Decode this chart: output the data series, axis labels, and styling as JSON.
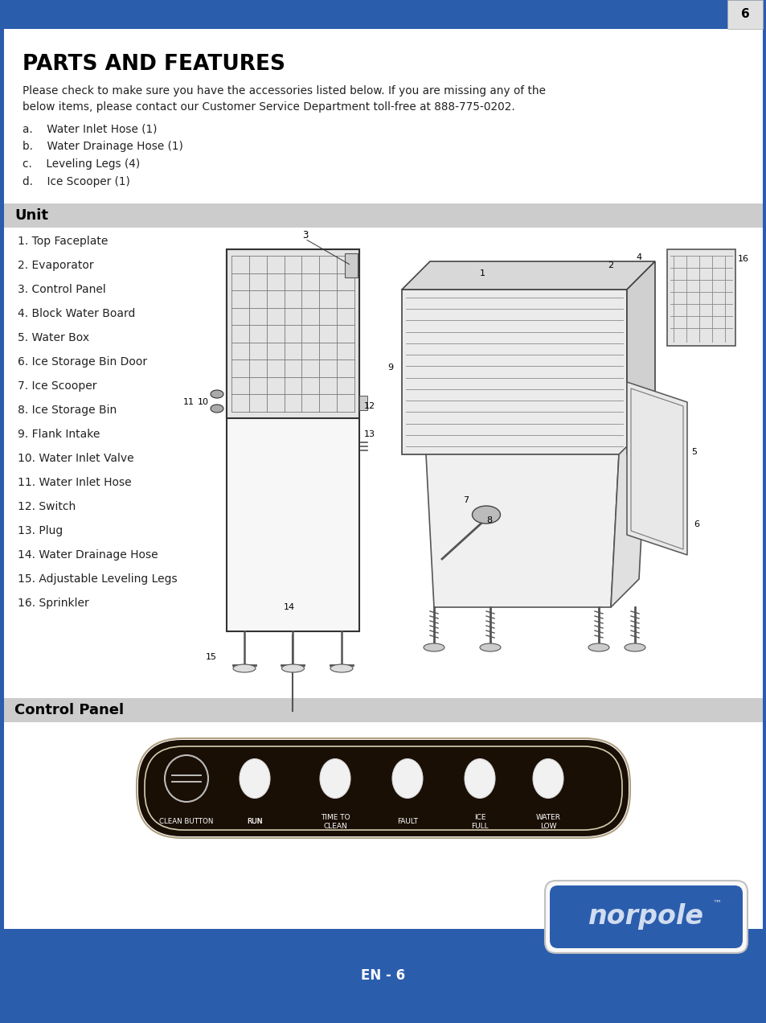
{
  "page_num": "6",
  "top_bar_color": "#2B5DAD",
  "title": "PARTS AND FEATURES",
  "body_bg": "#FFFFFF",
  "intro_line1": "Please check to make sure you have the accessories listed below. If you are missing any of the",
  "intro_line2": "below items, please contact our Customer Service Department toll-free at 888-775-0202.",
  "accessories": [
    "a.    Water Inlet Hose (1)",
    "b.    Water Drainage Hose (1)",
    "c.    Leveling Legs (4)",
    "d.    Ice Scooper (1)"
  ],
  "section_unit_label": "Unit",
  "unit_items": [
    "1. Top Faceplate",
    "2. Evaporator",
    "3. Control Panel",
    "4. Block Water Board",
    "5. Water Box",
    "6. Ice Storage Bin Door",
    "7. Ice Scooper",
    "8. Ice Storage Bin",
    "9. Flank Intake",
    "10. Water Inlet Valve",
    "11. Water Inlet Hose",
    "12. Switch",
    "13. Plug",
    "14. Water Drainage Hose",
    "15. Adjustable Leveling Legs",
    "16. Sprinkler"
  ],
  "section_panel_label": "Control Panel",
  "panel_buttons": [
    "CLEAN BUTTON",
    "RUN",
    "TIME TO\nCLEAN",
    "FAULT",
    "ICE\nFULL",
    "WATER\nLOW"
  ],
  "section_header_bg": "#CCCCCC",
  "bottom_bar_color": "#2B5DAD",
  "footer_text": "EN - 6",
  "norpole_bg": "#2B5DAD",
  "border_color": "#2B5DAD"
}
